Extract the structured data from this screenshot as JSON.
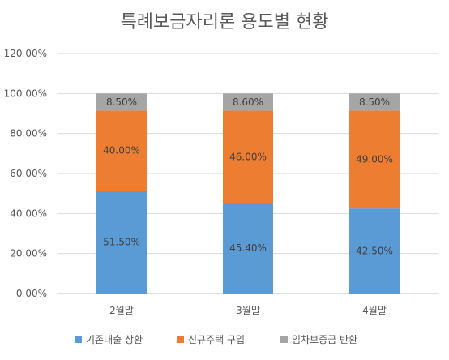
{
  "chart_data": {
    "type": "bar",
    "stacked": true,
    "title": "특례보금자리론 용도별 현황",
    "categories": [
      "2월말",
      "3월말",
      "4월말"
    ],
    "series": [
      {
        "name": "기존대출 상환",
        "values": [
          51.5,
          45.4,
          42.5
        ],
        "labels": [
          "51.50%",
          "45.40%",
          "42.50%"
        ],
        "color": "#5B9BD5"
      },
      {
        "name": "신규주택 구입",
        "values": [
          40.0,
          46.0,
          49.0
        ],
        "labels": [
          "40.00%",
          "46.00%",
          "49.00%"
        ],
        "color": "#ED7D31"
      },
      {
        "name": "임차보증금 반환",
        "values": [
          8.5,
          8.6,
          8.5
        ],
        "labels": [
          "8.50%",
          "8.60%",
          "8.50%"
        ],
        "color": "#A5A5A5"
      }
    ],
    "ylim": [
      0,
      120
    ],
    "yticks": [
      "0.00%",
      "20.00%",
      "40.00%",
      "60.00%",
      "80.00%",
      "100.00%",
      "120.00%"
    ],
    "grid": true,
    "legend_position": "bottom"
  }
}
